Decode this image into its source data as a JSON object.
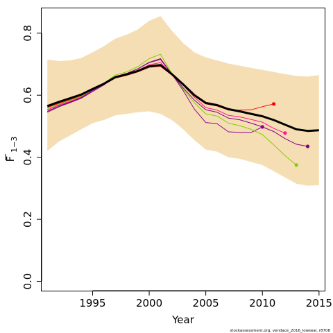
{
  "chart_data": {
    "type": "line",
    "xlabel": "Year",
    "ylabel_main": "F",
    "ylabel_sub": "1−3",
    "xlim": [
      1990.5,
      2015.5
    ],
    "ylim": [
      -0.03,
      0.88
    ],
    "xticks": [
      1995,
      2000,
      2005,
      2010,
      2015
    ],
    "xtick_labels": [
      "1995",
      "2000",
      "2005",
      "2010",
      "2015"
    ],
    "yticks": [
      0.0,
      0.2,
      0.4,
      0.6,
      0.8
    ],
    "ytick_labels": [
      "0.0",
      "0.2",
      "0.4",
      "0.6",
      "0.8"
    ],
    "grid": false,
    "colors": {
      "band": "#f5deb3",
      "main": "#000000",
      "retro": [
        "#ff0000",
        "#ff1493",
        "#8b008b",
        "#7fd000",
        "#800080"
      ]
    },
    "band": {
      "x": [
        1991,
        1992,
        1993,
        1994,
        1995,
        1996,
        1997,
        1998,
        1999,
        2000,
        2001,
        2002,
        2003,
        2004,
        2005,
        2006,
        2007,
        2008,
        2009,
        2010,
        2011,
        2012,
        2013,
        2014,
        2015
      ],
      "lower": [
        0.42,
        0.45,
        0.47,
        0.49,
        0.51,
        0.52,
        0.535,
        0.54,
        0.545,
        0.548,
        0.54,
        0.52,
        0.49,
        0.455,
        0.425,
        0.418,
        0.4,
        0.395,
        0.385,
        0.375,
        0.355,
        0.335,
        0.315,
        0.308,
        0.31
      ],
      "upper": [
        0.715,
        0.71,
        0.712,
        0.72,
        0.738,
        0.758,
        0.782,
        0.795,
        0.812,
        0.84,
        0.855,
        0.808,
        0.768,
        0.738,
        0.722,
        0.712,
        0.702,
        0.695,
        0.688,
        0.682,
        0.675,
        0.668,
        0.662,
        0.66,
        0.665
      ]
    },
    "series": [
      {
        "x": [
          1991,
          1992,
          1993,
          1994,
          1995,
          1996,
          1997,
          1998,
          1999,
          2000,
          2001,
          2002,
          2003,
          2004,
          2005,
          2006,
          2007,
          2008,
          2009,
          2010,
          2011,
          2012,
          2013,
          2014,
          2015
        ],
        "values": [
          0.565,
          0.578,
          0.59,
          0.602,
          0.62,
          0.637,
          0.658,
          0.667,
          0.678,
          0.693,
          0.697,
          0.668,
          0.635,
          0.6,
          0.575,
          0.568,
          0.555,
          0.548,
          0.54,
          0.532,
          0.52,
          0.505,
          0.49,
          0.485,
          0.487
        ],
        "role": "main"
      },
      {
        "x": [
          1991,
          1992,
          1993,
          1994,
          1995,
          1996,
          1997,
          1998,
          1999,
          2000,
          2001,
          2002,
          2003,
          2004,
          2005,
          2006,
          2007,
          2008,
          2009,
          2010,
          2011
        ],
        "values": [
          0.56,
          0.573,
          0.585,
          0.597,
          0.617,
          0.634,
          0.655,
          0.664,
          0.675,
          0.69,
          0.693,
          0.665,
          0.632,
          0.597,
          0.572,
          0.565,
          0.552,
          0.552,
          0.553,
          0.563,
          0.572
        ],
        "end_marker": true
      },
      {
        "x": [
          1991,
          1992,
          1993,
          1994,
          1995,
          1996,
          1997,
          1998,
          1999,
          2000,
          2001,
          2002,
          2003,
          2004,
          2005,
          2006,
          2007,
          2008,
          2009,
          2010,
          2011,
          2012
        ],
        "values": [
          0.552,
          0.568,
          0.58,
          0.594,
          0.616,
          0.635,
          0.658,
          0.668,
          0.68,
          0.698,
          0.705,
          0.668,
          0.632,
          0.593,
          0.56,
          0.552,
          0.535,
          0.53,
          0.522,
          0.513,
          0.493,
          0.478
        ],
        "end_marker": true
      },
      {
        "x": [
          1991,
          1992,
          1993,
          1994,
          1995,
          1996,
          1997,
          1998,
          1999,
          2000,
          2001,
          2002,
          2003,
          2004,
          2005,
          2006,
          2007,
          2008,
          2009,
          2010
        ],
        "values": [
          0.548,
          0.565,
          0.578,
          0.592,
          0.615,
          0.635,
          0.66,
          0.67,
          0.685,
          0.705,
          0.715,
          0.668,
          0.615,
          0.555,
          0.512,
          0.508,
          0.482,
          0.48,
          0.48,
          0.498
        ],
        "end_marker": true
      },
      {
        "x": [
          1991,
          1992,
          1993,
          1994,
          1995,
          1996,
          1997,
          1998,
          1999,
          2000,
          2001,
          2002,
          2003,
          2004,
          2005,
          2006,
          2007,
          2008,
          2009,
          2010,
          2011,
          2012,
          2013
        ],
        "values": [
          0.555,
          0.57,
          0.583,
          0.596,
          0.618,
          0.638,
          0.665,
          0.675,
          0.692,
          0.718,
          0.732,
          0.67,
          0.62,
          0.575,
          0.54,
          0.533,
          0.51,
          0.502,
          0.49,
          0.473,
          0.44,
          0.405,
          0.375
        ],
        "end_marker": true
      },
      {
        "x": [
          1991,
          1992,
          1993,
          1994,
          1995,
          1996,
          1997,
          1998,
          1999,
          2000,
          2001,
          2002,
          2003,
          2004,
          2005,
          2006,
          2007,
          2008,
          2009,
          2010,
          2011,
          2012,
          2013,
          2014
        ],
        "values": [
          0.545,
          0.562,
          0.576,
          0.59,
          0.612,
          0.633,
          0.66,
          0.67,
          0.685,
          0.706,
          0.718,
          0.668,
          0.624,
          0.584,
          0.553,
          0.545,
          0.526,
          0.521,
          0.51,
          0.498,
          0.483,
          0.46,
          0.442,
          0.435
        ],
        "end_marker": true
      }
    ]
  },
  "footer_text": "stockassessment.org, vendace_2016_lowseal, r8708"
}
